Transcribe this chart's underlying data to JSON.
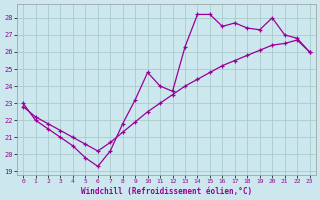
{
  "xlabel": "Windchill (Refroidissement éolien,°C)",
  "background_color": "#cce8ee",
  "grid_color": "#aacccc",
  "line_color": "#990099",
  "xlim": [
    -0.5,
    23.5
  ],
  "ylim": [
    18.8,
    28.8
  ],
  "yticks": [
    19,
    20,
    21,
    22,
    23,
    24,
    25,
    26,
    27,
    28
  ],
  "xticks": [
    0,
    1,
    2,
    3,
    4,
    5,
    6,
    7,
    8,
    9,
    10,
    11,
    12,
    13,
    14,
    15,
    16,
    17,
    18,
    19,
    20,
    21,
    22,
    23
  ],
  "zigzag_x": [
    0,
    1,
    2,
    3,
    4,
    5,
    6,
    7,
    8,
    9,
    10,
    11,
    12,
    13,
    14,
    15,
    16,
    17,
    18,
    19,
    20,
    21,
    22,
    23
  ],
  "zigzag_y": [
    23.0,
    22.0,
    21.5,
    21.0,
    20.5,
    19.8,
    19.3,
    20.2,
    21.8,
    23.2,
    24.8,
    24.0,
    23.7,
    26.3,
    28.2,
    28.2,
    27.5,
    27.7,
    27.4,
    27.3,
    28.0,
    27.0,
    26.8,
    26.0
  ],
  "straight_x": [
    0,
    1,
    2,
    3,
    4,
    5,
    6,
    7,
    8,
    9,
    10,
    11,
    12,
    13,
    14,
    15,
    16,
    17,
    18,
    19,
    20,
    21,
    22,
    23
  ],
  "straight_y": [
    22.8,
    22.2,
    21.8,
    21.4,
    21.0,
    20.6,
    20.2,
    20.7,
    21.3,
    21.9,
    22.5,
    23.0,
    23.5,
    24.0,
    24.4,
    24.8,
    25.2,
    25.5,
    25.8,
    26.1,
    26.4,
    26.5,
    26.7,
    26.0
  ]
}
